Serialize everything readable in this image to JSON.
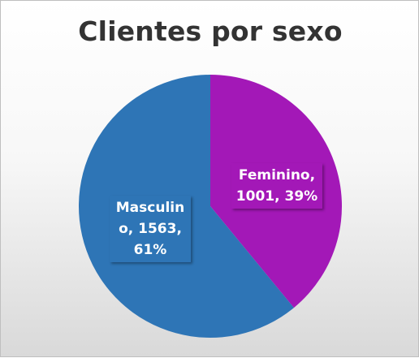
{
  "chart_data": {
    "type": "pie",
    "title": "Clientes por sexo",
    "slices": [
      {
        "name": "Feminino",
        "value": 1001,
        "percent": "39%",
        "color": "#a318b7",
        "label": "Feminino,\n1001, 39%"
      },
      {
        "name": "Masculino",
        "value": 1563,
        "percent": "61%",
        "color": "#2e75b6",
        "label": "Masculin\no, 1563,\n61%"
      }
    ],
    "start": "top, clockwise",
    "legend": "none",
    "data_labels": "category, value, percentage"
  }
}
